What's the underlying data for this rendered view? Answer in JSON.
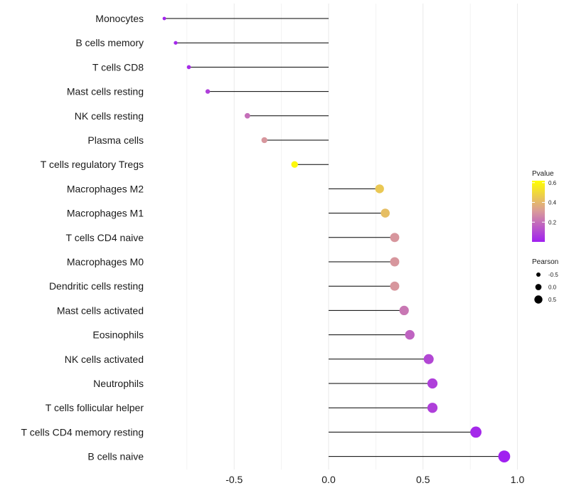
{
  "chart_data": {
    "type": "lollipop",
    "title": "",
    "xlabel": "",
    "ylabel": "",
    "xlim": [
      -1.0,
      1.0
    ],
    "x_ticks": [
      -0.5,
      0.0,
      0.5,
      1.0
    ],
    "x_tick_labels": [
      "-0.5",
      "0.0",
      "0.5",
      "1.0"
    ],
    "grid": true,
    "categories": [
      "Monocytes",
      "B cells memory",
      "T cells CD8",
      "Mast cells resting",
      "NK cells resting",
      "Plasma cells",
      "T cells regulatory  Tregs",
      "Macrophages M2",
      "Macrophages M1",
      "T cells CD4 naive",
      "Macrophages M0",
      "Dendritic cells resting",
      "Mast cells activated",
      "Eosinophils",
      "NK cells activated",
      "Neutrophils",
      "T cells follicular helper",
      "T cells CD4 memory resting",
      "B cells naive"
    ],
    "values": [
      -0.87,
      -0.81,
      -0.74,
      -0.64,
      -0.43,
      -0.34,
      -0.18,
      0.27,
      0.3,
      0.35,
      0.35,
      0.35,
      0.4,
      0.43,
      0.53,
      0.55,
      0.55,
      0.78,
      0.93
    ],
    "pvalues": [
      0.01,
      0.02,
      0.03,
      0.08,
      0.2,
      0.3,
      0.6,
      0.45,
      0.42,
      0.3,
      0.3,
      0.3,
      0.22,
      0.17,
      0.1,
      0.08,
      0.08,
      0.02,
      0.001
    ],
    "legend_position": "right",
    "color_legend": {
      "title": "Pvalue",
      "ticks": [
        0.6,
        0.4,
        0.2
      ],
      "tick_labels": [
        "0.6",
        "0.4",
        "0.2"
      ],
      "range": [
        0.0,
        0.62
      ],
      "low_color": "#a020f0",
      "mid_color": "#d99a9a",
      "high_color": "#ffff00"
    },
    "size_legend": {
      "title": "Pearson",
      "values": [
        -0.5,
        0.0,
        0.5
      ],
      "labels": [
        "-0.5",
        "0.0",
        "0.5"
      ]
    },
    "stem_color": "#000000",
    "grid_color": "#ebebeb"
  }
}
